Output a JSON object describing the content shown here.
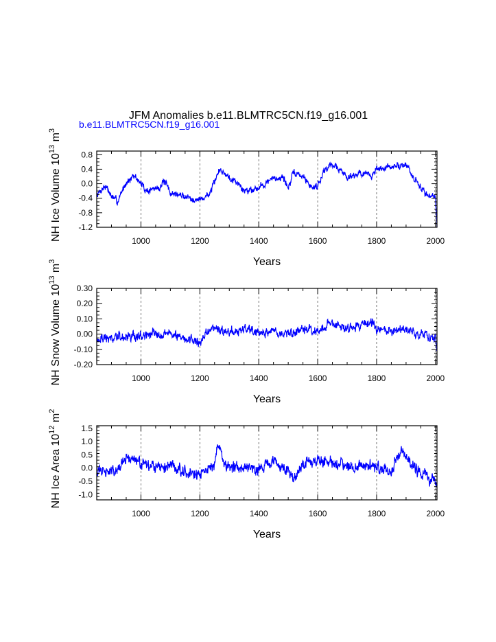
{
  "title": "JFM Anomalies b.e11.BLMTRC5CN.f19_g16.001",
  "legend": {
    "label": "b.e11.BLMTRC5CN.f19_g16.001",
    "color": "#0000ff"
  },
  "colors": {
    "line": "#0000ff",
    "axis": "#000000",
    "grid": "#555555"
  },
  "chart_data": [
    {
      "type": "line",
      "ylabel": {
        "prefix": "NH Ice Volume 10",
        "exp": "13",
        "unit": " m",
        "unit_exp": "3"
      },
      "xlabel": "Years",
      "xlim": [
        850,
        2005
      ],
      "ylim": [
        -1.2,
        0.9
      ],
      "xticks": [
        1000,
        1200,
        1400,
        1600,
        1800,
        2000
      ],
      "yticks": [
        0.8,
        0.4,
        0.0,
        -0.4,
        -0.8,
        -1.2
      ],
      "ytick_labels": [
        "0.8",
        "0.4",
        "0.0",
        "-0.4",
        "-0.8",
        "-1.2"
      ],
      "grid_x": [
        1000,
        1200,
        1400,
        1600,
        1800,
        2000
      ],
      "anchors": [
        [
          850,
          -0.3
        ],
        [
          880,
          -0.05
        ],
        [
          900,
          -0.35
        ],
        [
          920,
          -0.5
        ],
        [
          950,
          0.05
        ],
        [
          980,
          0.2
        ],
        [
          1000,
          0.0
        ],
        [
          1020,
          -0.2
        ],
        [
          1060,
          -0.1
        ],
        [
          1080,
          0.05
        ],
        [
          1100,
          -0.25
        ],
        [
          1150,
          -0.35
        ],
        [
          1200,
          -0.45
        ],
        [
          1230,
          -0.3
        ],
        [
          1250,
          0.0
        ],
        [
          1265,
          0.4
        ],
        [
          1290,
          0.25
        ],
        [
          1320,
          0.1
        ],
        [
          1350,
          -0.2
        ],
        [
          1400,
          -0.1
        ],
        [
          1440,
          0.1
        ],
        [
          1480,
          0.2
        ],
        [
          1500,
          -0.1
        ],
        [
          1520,
          0.3
        ],
        [
          1550,
          0.2
        ],
        [
          1580,
          -0.1
        ],
        [
          1600,
          -0.05
        ],
        [
          1620,
          0.35
        ],
        [
          1650,
          0.55
        ],
        [
          1700,
          0.2
        ],
        [
          1750,
          0.3
        ],
        [
          1780,
          0.2
        ],
        [
          1800,
          0.4
        ],
        [
          1850,
          0.45
        ],
        [
          1900,
          0.55
        ],
        [
          1920,
          0.2
        ],
        [
          1950,
          -0.1
        ],
        [
          1970,
          -0.3
        ],
        [
          2000,
          -0.35
        ],
        [
          2005,
          -1.2
        ]
      ],
      "amplitude": 0.15,
      "seed": 7
    },
    {
      "type": "line",
      "ylabel": {
        "prefix": "NH Snow Volume 10",
        "exp": "13",
        "unit": " m",
        "unit_exp": "3"
      },
      "xlabel": "Years",
      "xlim": [
        850,
        2005
      ],
      "ylim": [
        -0.2,
        0.3
      ],
      "xticks": [
        1000,
        1200,
        1400,
        1600,
        1800,
        2000
      ],
      "yticks": [
        0.3,
        0.2,
        0.1,
        0.0,
        -0.1,
        -0.2
      ],
      "ytick_labels": [
        "0.30",
        "0.20",
        "0.10",
        "0.00",
        "-0.10",
        "-0.20"
      ],
      "grid_x": [
        1000,
        1200,
        1400,
        1600,
        1800,
        2000
      ],
      "anchors": [
        [
          850,
          -0.03
        ],
        [
          950,
          -0.02
        ],
        [
          1000,
          -0.01
        ],
        [
          1100,
          0.01
        ],
        [
          1150,
          -0.03
        ],
        [
          1200,
          -0.05
        ],
        [
          1250,
          0.05
        ],
        [
          1300,
          0.0
        ],
        [
          1350,
          0.03
        ],
        [
          1400,
          0.0
        ],
        [
          1450,
          0.02
        ],
        [
          1500,
          0.0
        ],
        [
          1550,
          0.02
        ],
        [
          1600,
          0.02
        ],
        [
          1650,
          0.08
        ],
        [
          1700,
          0.04
        ],
        [
          1750,
          0.06
        ],
        [
          1780,
          0.09
        ],
        [
          1800,
          0.03
        ],
        [
          1850,
          0.02
        ],
        [
          1900,
          0.02
        ],
        [
          1950,
          0.0
        ],
        [
          2000,
          -0.03
        ],
        [
          2005,
          -0.12
        ]
      ],
      "amplitude": 0.05,
      "seed": 19
    },
    {
      "type": "line",
      "ylabel": {
        "prefix": "NH Ice Area 10",
        "exp": "12",
        "unit": " m",
        "unit_exp": "2"
      },
      "xlabel": "Years",
      "xlim": [
        850,
        2005
      ],
      "ylim": [
        -1.2,
        1.6
      ],
      "xticks": [
        1000,
        1200,
        1400,
        1600,
        1800,
        2000
      ],
      "yticks": [
        1.5,
        1.0,
        0.5,
        0.0,
        -0.5,
        -1.0
      ],
      "ytick_labels": [
        "1.5",
        "1.0",
        "0.5",
        "0.0",
        "-0.5",
        "-1.0"
      ],
      "grid_x": [
        1000,
        1200,
        1400,
        1600,
        1800,
        2000
      ],
      "anchors": [
        [
          850,
          -0.1
        ],
        [
          900,
          -0.15
        ],
        [
          950,
          0.3
        ],
        [
          980,
          0.4
        ],
        [
          1000,
          0.1
        ],
        [
          1050,
          0.0
        ],
        [
          1100,
          0.1
        ],
        [
          1150,
          -0.1
        ],
        [
          1200,
          -0.3
        ],
        [
          1250,
          0.2
        ],
        [
          1265,
          0.9
        ],
        [
          1280,
          0.2
        ],
        [
          1300,
          0.0
        ],
        [
          1350,
          0.1
        ],
        [
          1400,
          0.0
        ],
        [
          1450,
          0.2
        ],
        [
          1500,
          -0.1
        ],
        [
          1520,
          -0.4
        ],
        [
          1550,
          0.2
        ],
        [
          1600,
          0.3
        ],
        [
          1650,
          0.2
        ],
        [
          1700,
          0.1
        ],
        [
          1750,
          0.1
        ],
        [
          1800,
          0.0
        ],
        [
          1850,
          -0.1
        ],
        [
          1890,
          0.7
        ],
        [
          1920,
          0.1
        ],
        [
          1950,
          -0.2
        ],
        [
          2000,
          -0.5
        ]
      ],
      "amplitude": 0.35,
      "seed": 31
    }
  ]
}
